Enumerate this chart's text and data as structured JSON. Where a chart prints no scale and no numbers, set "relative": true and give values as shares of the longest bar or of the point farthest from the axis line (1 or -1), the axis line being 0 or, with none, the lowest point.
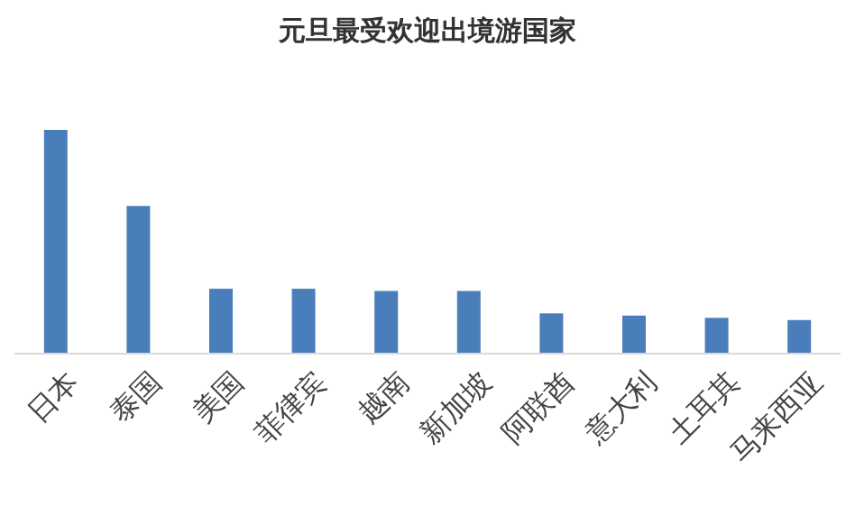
{
  "chart_data": {
    "type": "bar",
    "title": "元旦最受欢迎出境游国家",
    "relative": true,
    "color": "#4a7ebb",
    "categories": [
      "日本",
      "泰国",
      "美国",
      "菲律宾",
      "越南",
      "新加坡",
      "阿联酋",
      "意大利",
      "土耳其",
      "马来西亚"
    ],
    "values": [
      1,
      0.66,
      0.29,
      0.29,
      0.28,
      0.28,
      0.18,
      0.17,
      0.16,
      0.15
    ]
  }
}
